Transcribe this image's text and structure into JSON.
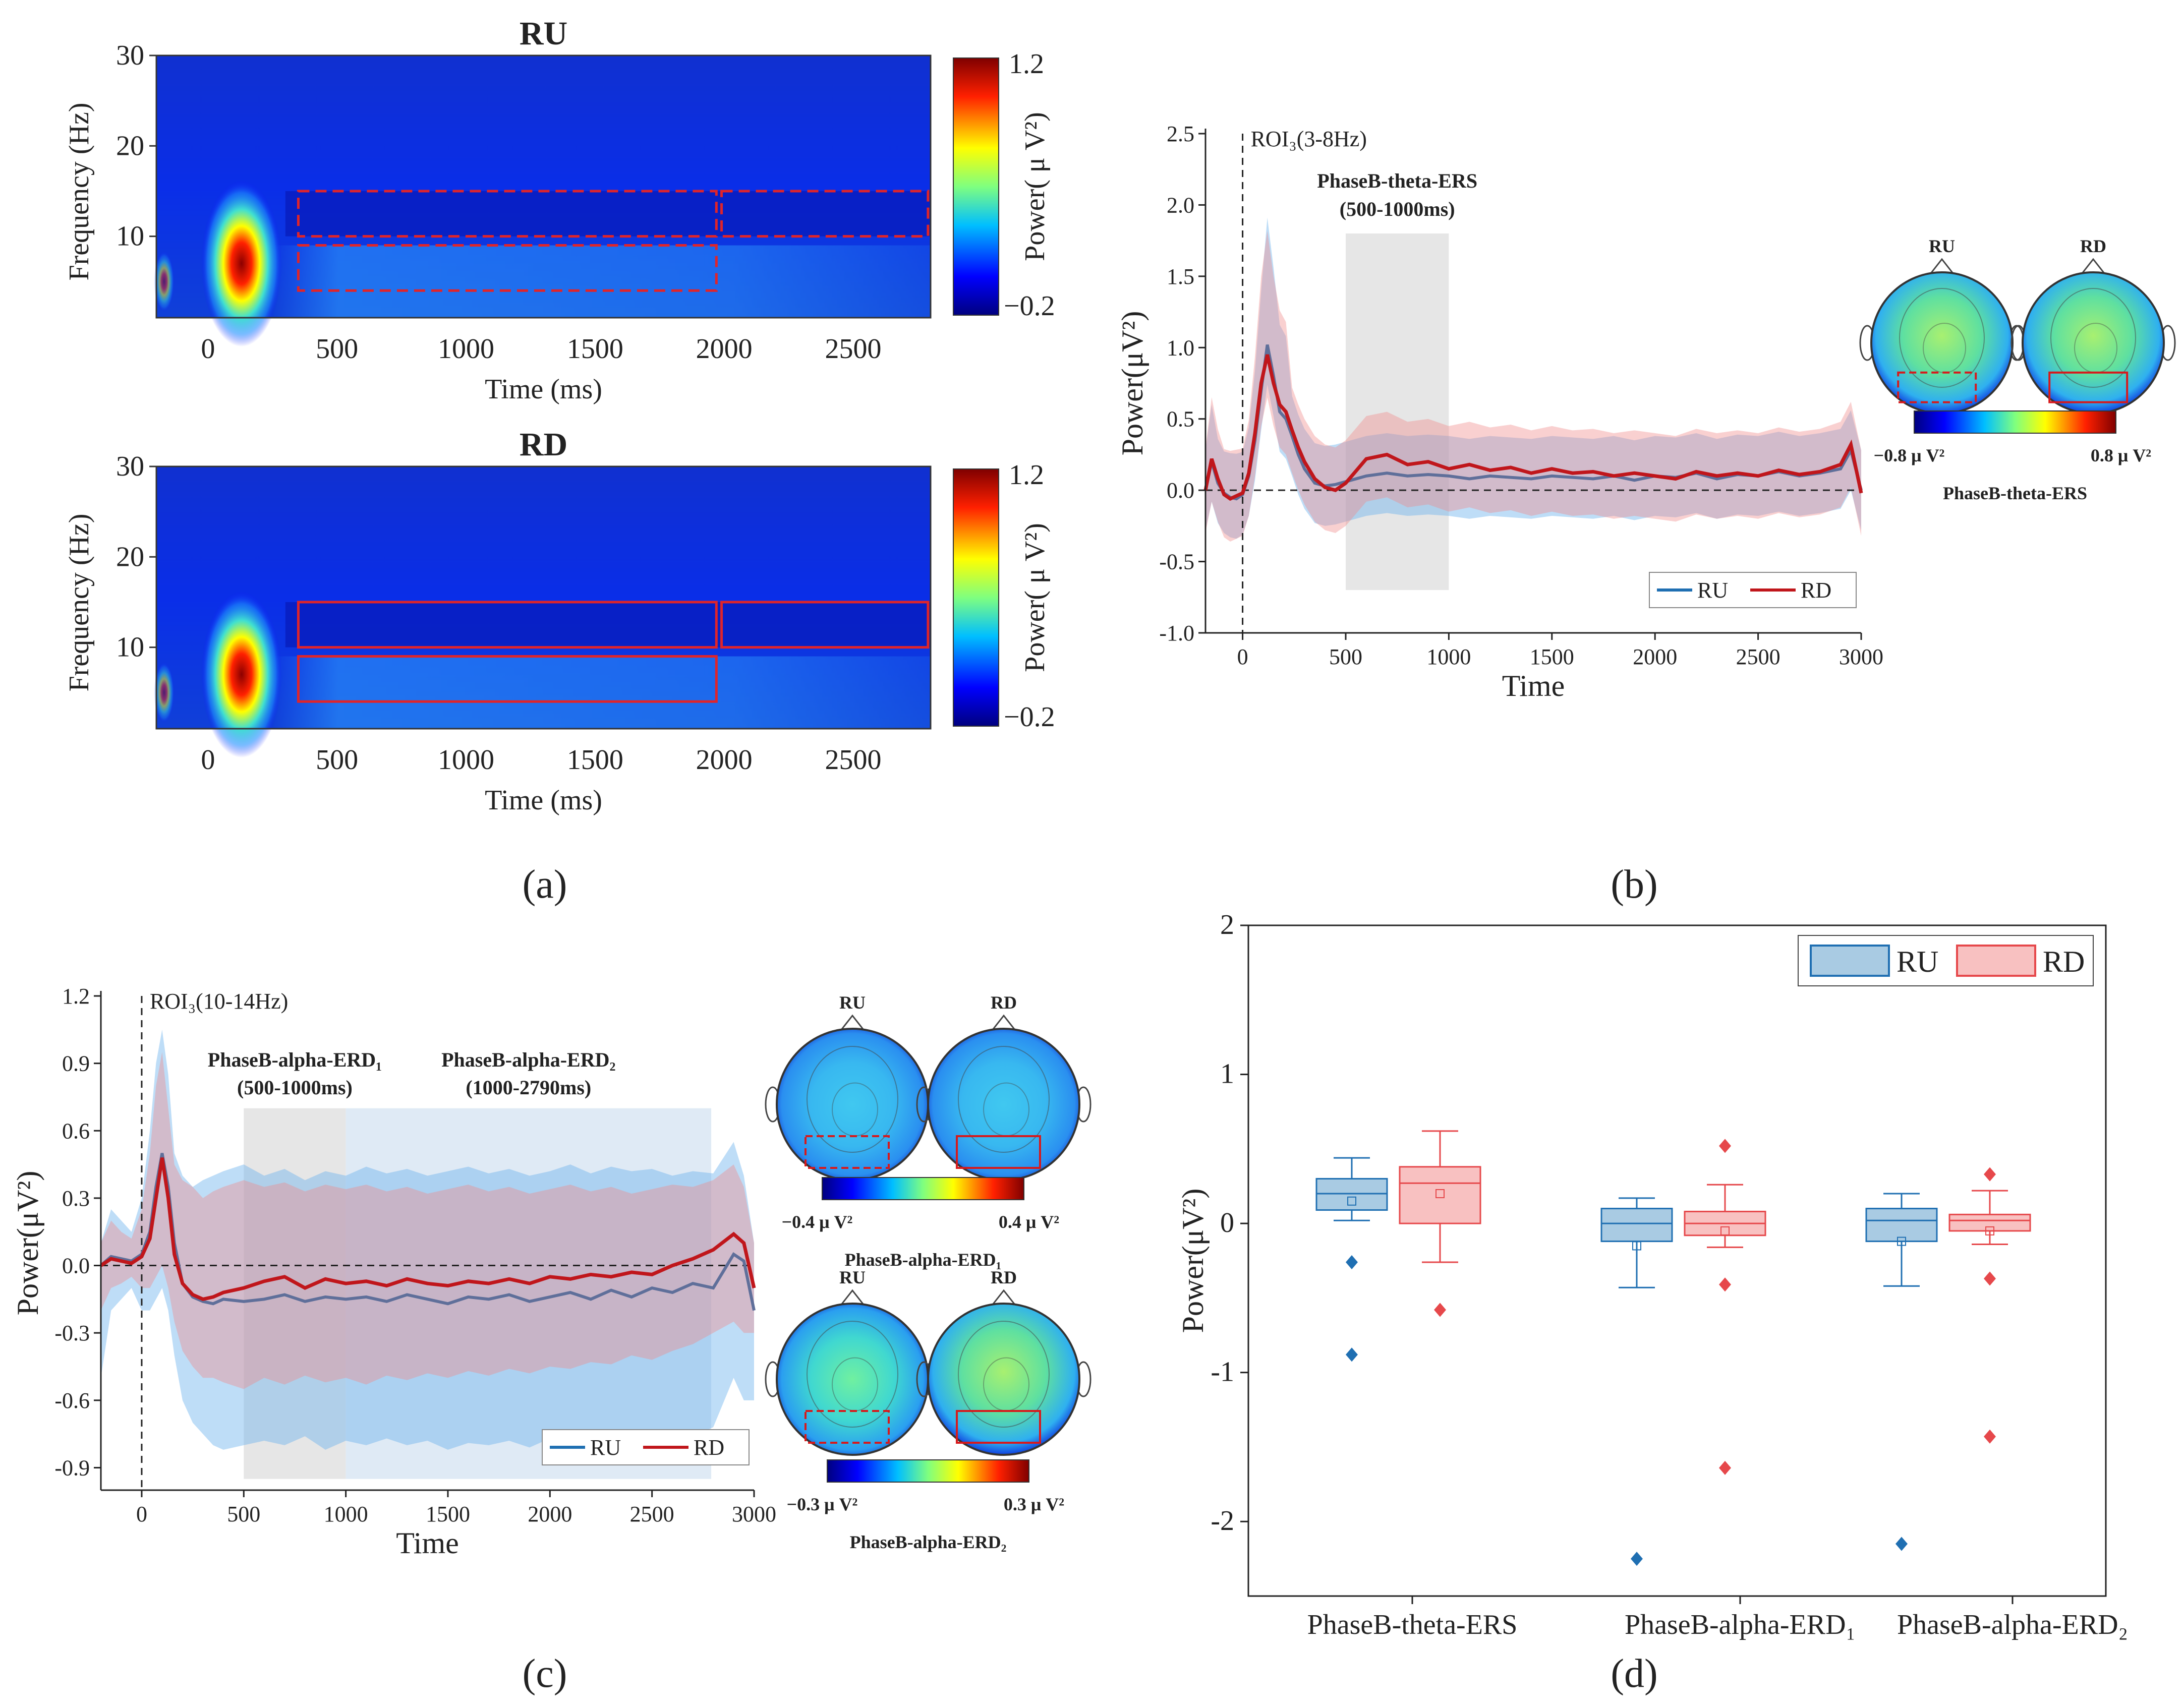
{
  "figure": {
    "panel_labels": [
      "(a)",
      "(b)",
      "(c)",
      "(d)"
    ]
  },
  "chart_data": [
    {
      "id": "a-ru",
      "type": "heatmap",
      "title": "RU",
      "xlabel": "Time (ms)",
      "ylabel": "Frequency (Hz)",
      "xticks": [
        "0",
        "500",
        "1000",
        "1500",
        "2000",
        "2500"
      ],
      "yticks": [
        "10",
        "20",
        "30"
      ],
      "xlim": [
        -200,
        2800
      ],
      "ylim": [
        1,
        30
      ],
      "colorbar": {
        "label": "Power( μ V²)",
        "max_label": "1.2",
        "min_label": "−0.2",
        "range": [
          -0.2,
          1.2
        ]
      },
      "rois": [
        {
          "t0": 350,
          "t1": 1970,
          "f0": 10,
          "f1": 15,
          "style": "dashed"
        },
        {
          "t0": 350,
          "t1": 1970,
          "f0": 4,
          "f1": 9,
          "style": "dashed"
        },
        {
          "t0": 1990,
          "t1": 2790,
          "f0": 10,
          "f1": 15,
          "style": "dashed"
        }
      ]
    },
    {
      "id": "a-rd",
      "type": "heatmap",
      "title": "RD",
      "xlabel": "Time (ms)",
      "ylabel": "Frequency (Hz)",
      "xticks": [
        "0",
        "500",
        "1000",
        "1500",
        "2000",
        "2500"
      ],
      "yticks": [
        "10",
        "20",
        "30"
      ],
      "xlim": [
        -200,
        2800
      ],
      "ylim": [
        1,
        30
      ],
      "colorbar": {
        "label": "Power( μ V²)",
        "max_label": "1.2",
        "min_label": "−0.2",
        "range": [
          -0.2,
          1.2
        ]
      },
      "rois": [
        {
          "t0": 350,
          "t1": 1970,
          "f0": 10,
          "f1": 15,
          "style": "solid"
        },
        {
          "t0": 350,
          "t1": 1970,
          "f0": 4,
          "f1": 9,
          "style": "solid"
        },
        {
          "t0": 1990,
          "t1": 2790,
          "f0": 10,
          "f1": 15,
          "style": "solid"
        }
      ]
    },
    {
      "id": "b",
      "type": "line",
      "annotation": "ROI₃(3-8Hz)",
      "shade_title": "PhaseB-theta-ERS",
      "shade_sub": "(500-1000ms)",
      "shade_range": [
        500,
        1000
      ],
      "xlabel": "Time",
      "ylabel": "Power(μV²)",
      "xlim": [
        -180,
        3000
      ],
      "ylim": [
        -1.0,
        2.5
      ],
      "xticks": [
        "0",
        "500",
        "1000",
        "1500",
        "2000",
        "2500",
        "3000"
      ],
      "yticks": [
        "-1.0",
        "-0.5",
        "0.0",
        "0.5",
        "1.0",
        "1.5",
        "2.0",
        "2.5"
      ],
      "legend": [
        "RU",
        "RD"
      ],
      "x": [
        -180,
        -150,
        -120,
        -90,
        -60,
        -30,
        0,
        30,
        60,
        90,
        120,
        150,
        180,
        210,
        240,
        270,
        300,
        350,
        400,
        450,
        500,
        600,
        700,
        800,
        900,
        1000,
        1100,
        1200,
        1300,
        1400,
        1500,
        1600,
        1700,
        1800,
        1900,
        2000,
        2100,
        2200,
        2300,
        2400,
        2500,
        2600,
        2700,
        2800,
        2900,
        2950,
        3000
      ],
      "series": [
        {
          "name": "RU",
          "color": "#1f6fb2",
          "values": [
            0.0,
            0.2,
            0.05,
            -0.02,
            -0.05,
            -0.06,
            -0.03,
            0.1,
            0.35,
            0.7,
            1.02,
            0.8,
            0.55,
            0.5,
            0.38,
            0.25,
            0.15,
            0.05,
            0.03,
            0.04,
            0.06,
            0.1,
            0.12,
            0.1,
            0.11,
            0.1,
            0.08,
            0.1,
            0.09,
            0.08,
            0.1,
            0.09,
            0.08,
            0.1,
            0.07,
            0.1,
            0.09,
            0.12,
            0.08,
            0.11,
            0.1,
            0.13,
            0.1,
            0.12,
            0.15,
            0.28,
            0.0
          ],
          "band": 0.28
        },
        {
          "name": "RD",
          "color": "#c0161b",
          "values": [
            0.0,
            0.22,
            0.08,
            -0.03,
            -0.06,
            -0.04,
            -0.02,
            0.12,
            0.4,
            0.75,
            0.95,
            0.75,
            0.6,
            0.55,
            0.42,
            0.3,
            0.2,
            0.08,
            0.02,
            0.0,
            0.05,
            0.22,
            0.25,
            0.18,
            0.2,
            0.15,
            0.18,
            0.14,
            0.16,
            0.12,
            0.15,
            0.12,
            0.13,
            0.1,
            0.12,
            0.1,
            0.08,
            0.13,
            0.1,
            0.12,
            0.1,
            0.14,
            0.11,
            0.13,
            0.18,
            0.32,
            -0.02
          ],
          "band": 0.3
        }
      ],
      "topomaps": {
        "labels": [
          "RU",
          "RD"
        ],
        "colorbar_min": "−0.8 μ V²",
        "colorbar_max": "0.8 μ V²",
        "caption": "PhaseB-theta-ERS"
      }
    },
    {
      "id": "c",
      "type": "line",
      "annotation": "ROI₃(10-14Hz)",
      "shade1_title": "PhaseB-alpha-ERD₁",
      "shade1_sub": "(500-1000ms)",
      "shade1_range": [
        500,
        1000
      ],
      "shade2_title": "PhaseB-alpha-ERD₂",
      "shade2_sub": "(1000-2790ms)",
      "shade2_range": [
        1000,
        2790
      ],
      "xlabel": "Time",
      "ylabel": "Power(μV²)",
      "xlim": [
        -200,
        3000
      ],
      "ylim": [
        -1.0,
        1.2
      ],
      "xticks": [
        "0",
        "500",
        "1000",
        "1500",
        "2000",
        "2500",
        "3000"
      ],
      "yticks": [
        "-0.9",
        "-0.6",
        "-0.3",
        "0.0",
        "0.3",
        "0.6",
        "0.9",
        "1.2"
      ],
      "legend": [
        "RU",
        "RD"
      ],
      "x": [
        -200,
        -150,
        -100,
        -50,
        0,
        40,
        70,
        100,
        130,
        160,
        200,
        250,
        300,
        350,
        400,
        500,
        600,
        700,
        800,
        900,
        1000,
        1100,
        1200,
        1300,
        1400,
        1500,
        1600,
        1700,
        1800,
        1900,
        2000,
        2100,
        2200,
        2300,
        2400,
        2500,
        2600,
        2700,
        2800,
        2900,
        2950,
        3000
      ],
      "series": [
        {
          "name": "RU",
          "color": "#1f6fb2",
          "values": [
            0.0,
            0.04,
            0.03,
            0.02,
            0.05,
            0.15,
            0.35,
            0.5,
            0.35,
            0.1,
            -0.08,
            -0.14,
            -0.16,
            -0.17,
            -0.15,
            -0.16,
            -0.15,
            -0.13,
            -0.16,
            -0.14,
            -0.15,
            -0.14,
            -0.16,
            -0.13,
            -0.15,
            -0.17,
            -0.14,
            -0.15,
            -0.13,
            -0.16,
            -0.14,
            -0.12,
            -0.15,
            -0.11,
            -0.14,
            -0.1,
            -0.12,
            -0.08,
            -0.1,
            0.05,
            0.02,
            -0.2
          ],
          "upper": [
            0.1,
            0.25,
            0.2,
            0.15,
            0.3,
            0.6,
            0.9,
            1.05,
            0.85,
            0.5,
            0.4,
            0.35,
            0.38,
            0.4,
            0.42,
            0.45,
            0.4,
            0.43,
            0.38,
            0.42,
            0.4,
            0.44,
            0.41,
            0.43,
            0.4,
            0.42,
            0.44,
            0.41,
            0.43,
            0.4,
            0.42,
            0.45,
            0.41,
            0.44,
            0.42,
            0.43,
            0.4,
            0.42,
            0.41,
            0.55,
            0.4,
            0.1
          ],
          "lower": [
            -0.5,
            -0.2,
            -0.15,
            -0.1,
            -0.2,
            -0.2,
            -0.15,
            -0.1,
            -0.2,
            -0.4,
            -0.6,
            -0.7,
            -0.75,
            -0.8,
            -0.82,
            -0.8,
            -0.78,
            -0.8,
            -0.76,
            -0.82,
            -0.78,
            -0.8,
            -0.77,
            -0.8,
            -0.78,
            -0.82,
            -0.79,
            -0.8,
            -0.78,
            -0.81,
            -0.77,
            -0.8,
            -0.76,
            -0.79,
            -0.75,
            -0.78,
            -0.74,
            -0.76,
            -0.72,
            -0.5,
            -0.6,
            -0.6
          ]
        },
        {
          "name": "RD",
          "color": "#c0161b",
          "values": [
            0.0,
            0.03,
            0.02,
            0.01,
            0.04,
            0.12,
            0.3,
            0.48,
            0.3,
            0.05,
            -0.08,
            -0.13,
            -0.15,
            -0.14,
            -0.12,
            -0.1,
            -0.07,
            -0.05,
            -0.1,
            -0.06,
            -0.08,
            -0.07,
            -0.09,
            -0.06,
            -0.08,
            -0.09,
            -0.07,
            -0.08,
            -0.06,
            -0.08,
            -0.05,
            -0.06,
            -0.04,
            -0.05,
            -0.03,
            -0.04,
            0.0,
            0.03,
            0.07,
            0.14,
            0.1,
            -0.1
          ],
          "upper": [
            0.1,
            0.2,
            0.15,
            0.12,
            0.25,
            0.5,
            0.8,
            0.95,
            0.7,
            0.45,
            0.38,
            0.35,
            0.3,
            0.33,
            0.35,
            0.38,
            0.35,
            0.37,
            0.33,
            0.36,
            0.34,
            0.36,
            0.33,
            0.35,
            0.32,
            0.34,
            0.36,
            0.33,
            0.35,
            0.32,
            0.34,
            0.36,
            0.33,
            0.35,
            0.32,
            0.34,
            0.36,
            0.35,
            0.38,
            0.45,
            0.35,
            0.1
          ],
          "lower": [
            -0.2,
            -0.1,
            -0.08,
            -0.05,
            -0.1,
            -0.1,
            -0.05,
            0.0,
            -0.1,
            -0.25,
            -0.38,
            -0.45,
            -0.5,
            -0.5,
            -0.52,
            -0.55,
            -0.5,
            -0.53,
            -0.49,
            -0.52,
            -0.5,
            -0.53,
            -0.49,
            -0.51,
            -0.48,
            -0.5,
            -0.47,
            -0.49,
            -0.46,
            -0.48,
            -0.45,
            -0.46,
            -0.43,
            -0.44,
            -0.4,
            -0.42,
            -0.38,
            -0.35,
            -0.3,
            -0.25,
            -0.3,
            -0.3
          ]
        }
      ],
      "topomaps": [
        {
          "labels": [
            "RU",
            "RD"
          ],
          "colorbar_min": "−0.4 μ V²",
          "colorbar_max": "0.4 μ V²",
          "caption": "PhaseB-alpha-ERD₁"
        },
        {
          "labels": [
            "RU",
            "RD"
          ],
          "colorbar_min": "−0.3 μ V²",
          "colorbar_max": "0.3 μ V²",
          "caption": "PhaseB-alpha-ERD₂"
        }
      ]
    },
    {
      "id": "d",
      "type": "box",
      "ylabel": "Power(μV²)",
      "ylim": [
        -2.5,
        2.0
      ],
      "yticks": [
        "-2",
        "-1",
        "0",
        "1",
        "2"
      ],
      "categories": [
        "PhaseB-theta-ERS",
        "PhaseB-alpha-ERD₁",
        "PhaseB-alpha-ERD₂"
      ],
      "legend": [
        "RU",
        "RD"
      ],
      "series": [
        {
          "name": "RU",
          "color": "#1f6fb2",
          "fill": "#a9cbe3",
          "boxes": [
            {
              "min": 0.02,
              "q1": 0.09,
              "median": 0.2,
              "q3": 0.3,
              "max": 0.44,
              "mean": 0.15,
              "outliers": [
                -0.26,
                -0.88
              ]
            },
            {
              "min": -0.43,
              "q1": -0.12,
              "median": 0.0,
              "q3": 0.1,
              "max": 0.17,
              "mean": -0.15,
              "outliers": [
                -2.25
              ]
            },
            {
              "min": -0.42,
              "q1": -0.12,
              "median": 0.02,
              "q3": 0.1,
              "max": 0.2,
              "mean": -0.12,
              "outliers": [
                -2.15
              ]
            }
          ]
        },
        {
          "name": "RD",
          "color": "#e6484b",
          "fill": "#f8c1c1",
          "boxes": [
            {
              "min": -0.26,
              "q1": 0.0,
              "median": 0.27,
              "q3": 0.38,
              "max": 0.62,
              "mean": 0.2,
              "outliers": [
                -0.58
              ]
            },
            {
              "min": -0.16,
              "q1": -0.08,
              "median": 0.0,
              "q3": 0.08,
              "max": 0.26,
              "mean": -0.05,
              "outliers": [
                0.52,
                -0.41,
                -1.64
              ]
            },
            {
              "min": -0.14,
              "q1": -0.05,
              "median": 0.02,
              "q3": 0.06,
              "max": 0.22,
              "mean": -0.05,
              "outliers": [
                0.33,
                -0.37,
                -1.43
              ]
            }
          ]
        }
      ]
    }
  ]
}
